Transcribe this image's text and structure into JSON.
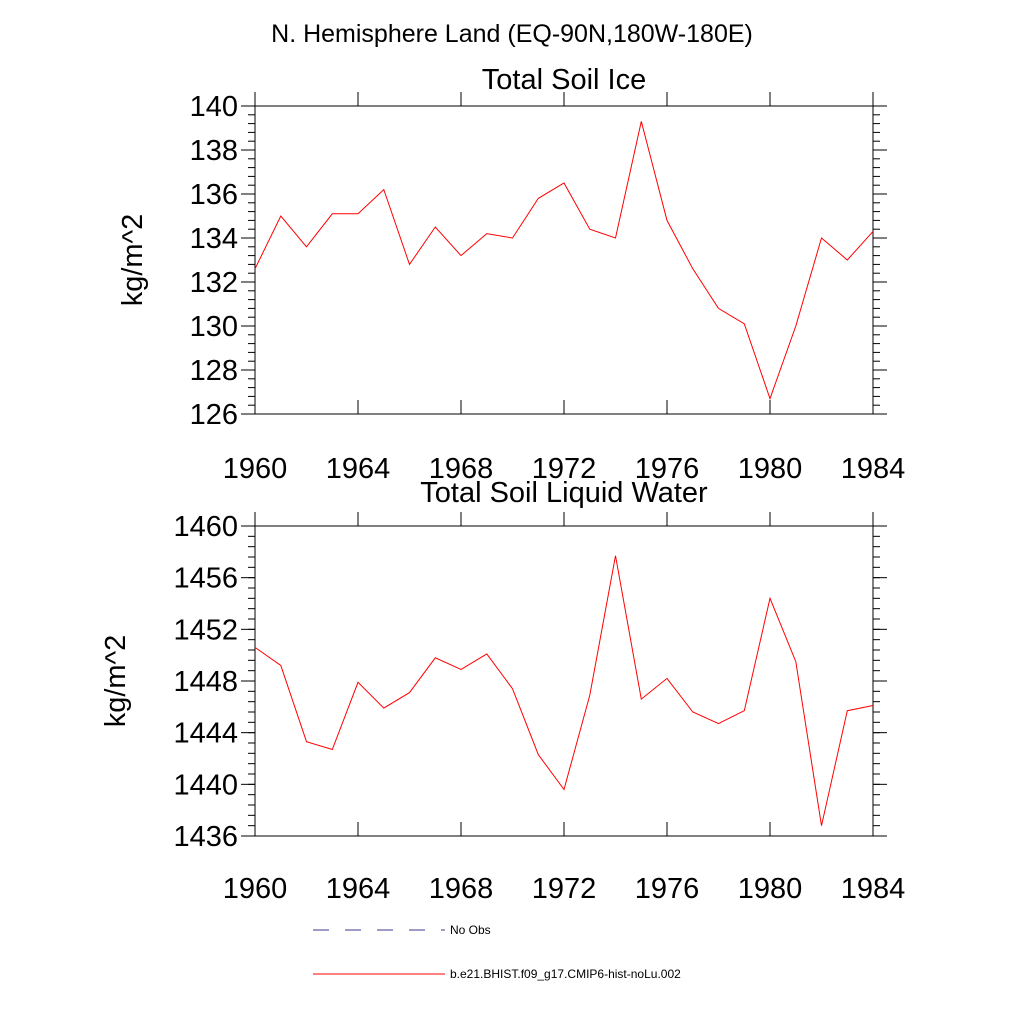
{
  "figure": {
    "title": "N. Hemisphere Land (EQ-90N,180W-180E)"
  },
  "chart_data": [
    {
      "type": "line",
      "title": "Total Soil Ice",
      "xlabel": "",
      "ylabel": "kg/m^2",
      "xlim": [
        1960,
        1984
      ],
      "ylim": [
        126,
        140
      ],
      "x_ticks": [
        1960,
        1964,
        1968,
        1972,
        1976,
        1980,
        1984
      ],
      "y_ticks": [
        126,
        128,
        130,
        132,
        134,
        136,
        138,
        140
      ],
      "x": [
        1960,
        1961,
        1962,
        1963,
        1964,
        1965,
        1966,
        1967,
        1968,
        1969,
        1970,
        1971,
        1972,
        1973,
        1974,
        1975,
        1976,
        1977,
        1978,
        1979,
        1980,
        1981,
        1982,
        1983,
        1984
      ],
      "series": [
        {
          "name": "b.e21.BHIST.f09_g17.CMIP6-hist-noLu.002",
          "color": "#ff0000",
          "values": [
            132.6,
            135.0,
            133.6,
            135.1,
            135.1,
            136.2,
            132.8,
            134.5,
            133.2,
            134.2,
            134.0,
            135.8,
            136.5,
            134.4,
            134.0,
            139.3,
            134.8,
            132.6,
            130.8,
            130.1,
            126.7,
            130.0,
            134.0,
            133.0,
            134.3
          ]
        }
      ],
      "grid": false
    },
    {
      "type": "line",
      "title": "Total Soil Liquid Water",
      "xlabel": "",
      "ylabel": "kg/m^2",
      "xlim": [
        1960,
        1984
      ],
      "ylim": [
        1436,
        1460
      ],
      "x_ticks": [
        1960,
        1964,
        1968,
        1972,
        1976,
        1980,
        1984
      ],
      "y_ticks": [
        1436,
        1440,
        1444,
        1448,
        1452,
        1456,
        1460
      ],
      "x": [
        1960,
        1961,
        1962,
        1963,
        1964,
        1965,
        1966,
        1967,
        1968,
        1969,
        1970,
        1971,
        1972,
        1973,
        1974,
        1975,
        1976,
        1977,
        1978,
        1979,
        1980,
        1981,
        1982,
        1983,
        1984
      ],
      "series": [
        {
          "name": "b.e21.BHIST.f09_g17.CMIP6-hist-noLu.002",
          "color": "#ff0000",
          "values": [
            1450.6,
            1449.2,
            1443.3,
            1442.7,
            1447.9,
            1445.9,
            1447.1,
            1449.8,
            1448.9,
            1450.1,
            1447.4,
            1442.3,
            1439.6,
            1446.9,
            1457.7,
            1446.6,
            1448.2,
            1445.6,
            1444.7,
            1445.7,
            1454.4,
            1449.5,
            1436.8,
            1445.7,
            1446.1
          ]
        }
      ],
      "grid": false
    }
  ],
  "legend": {
    "placement": "bottom",
    "entries": [
      {
        "label": "No Obs",
        "style": "dashed",
        "color": "#3a3a8c"
      },
      {
        "label": "b.e21.BHIST.f09_g17.CMIP6-hist-noLu.002",
        "style": "solid",
        "color": "#ff0000"
      }
    ]
  }
}
